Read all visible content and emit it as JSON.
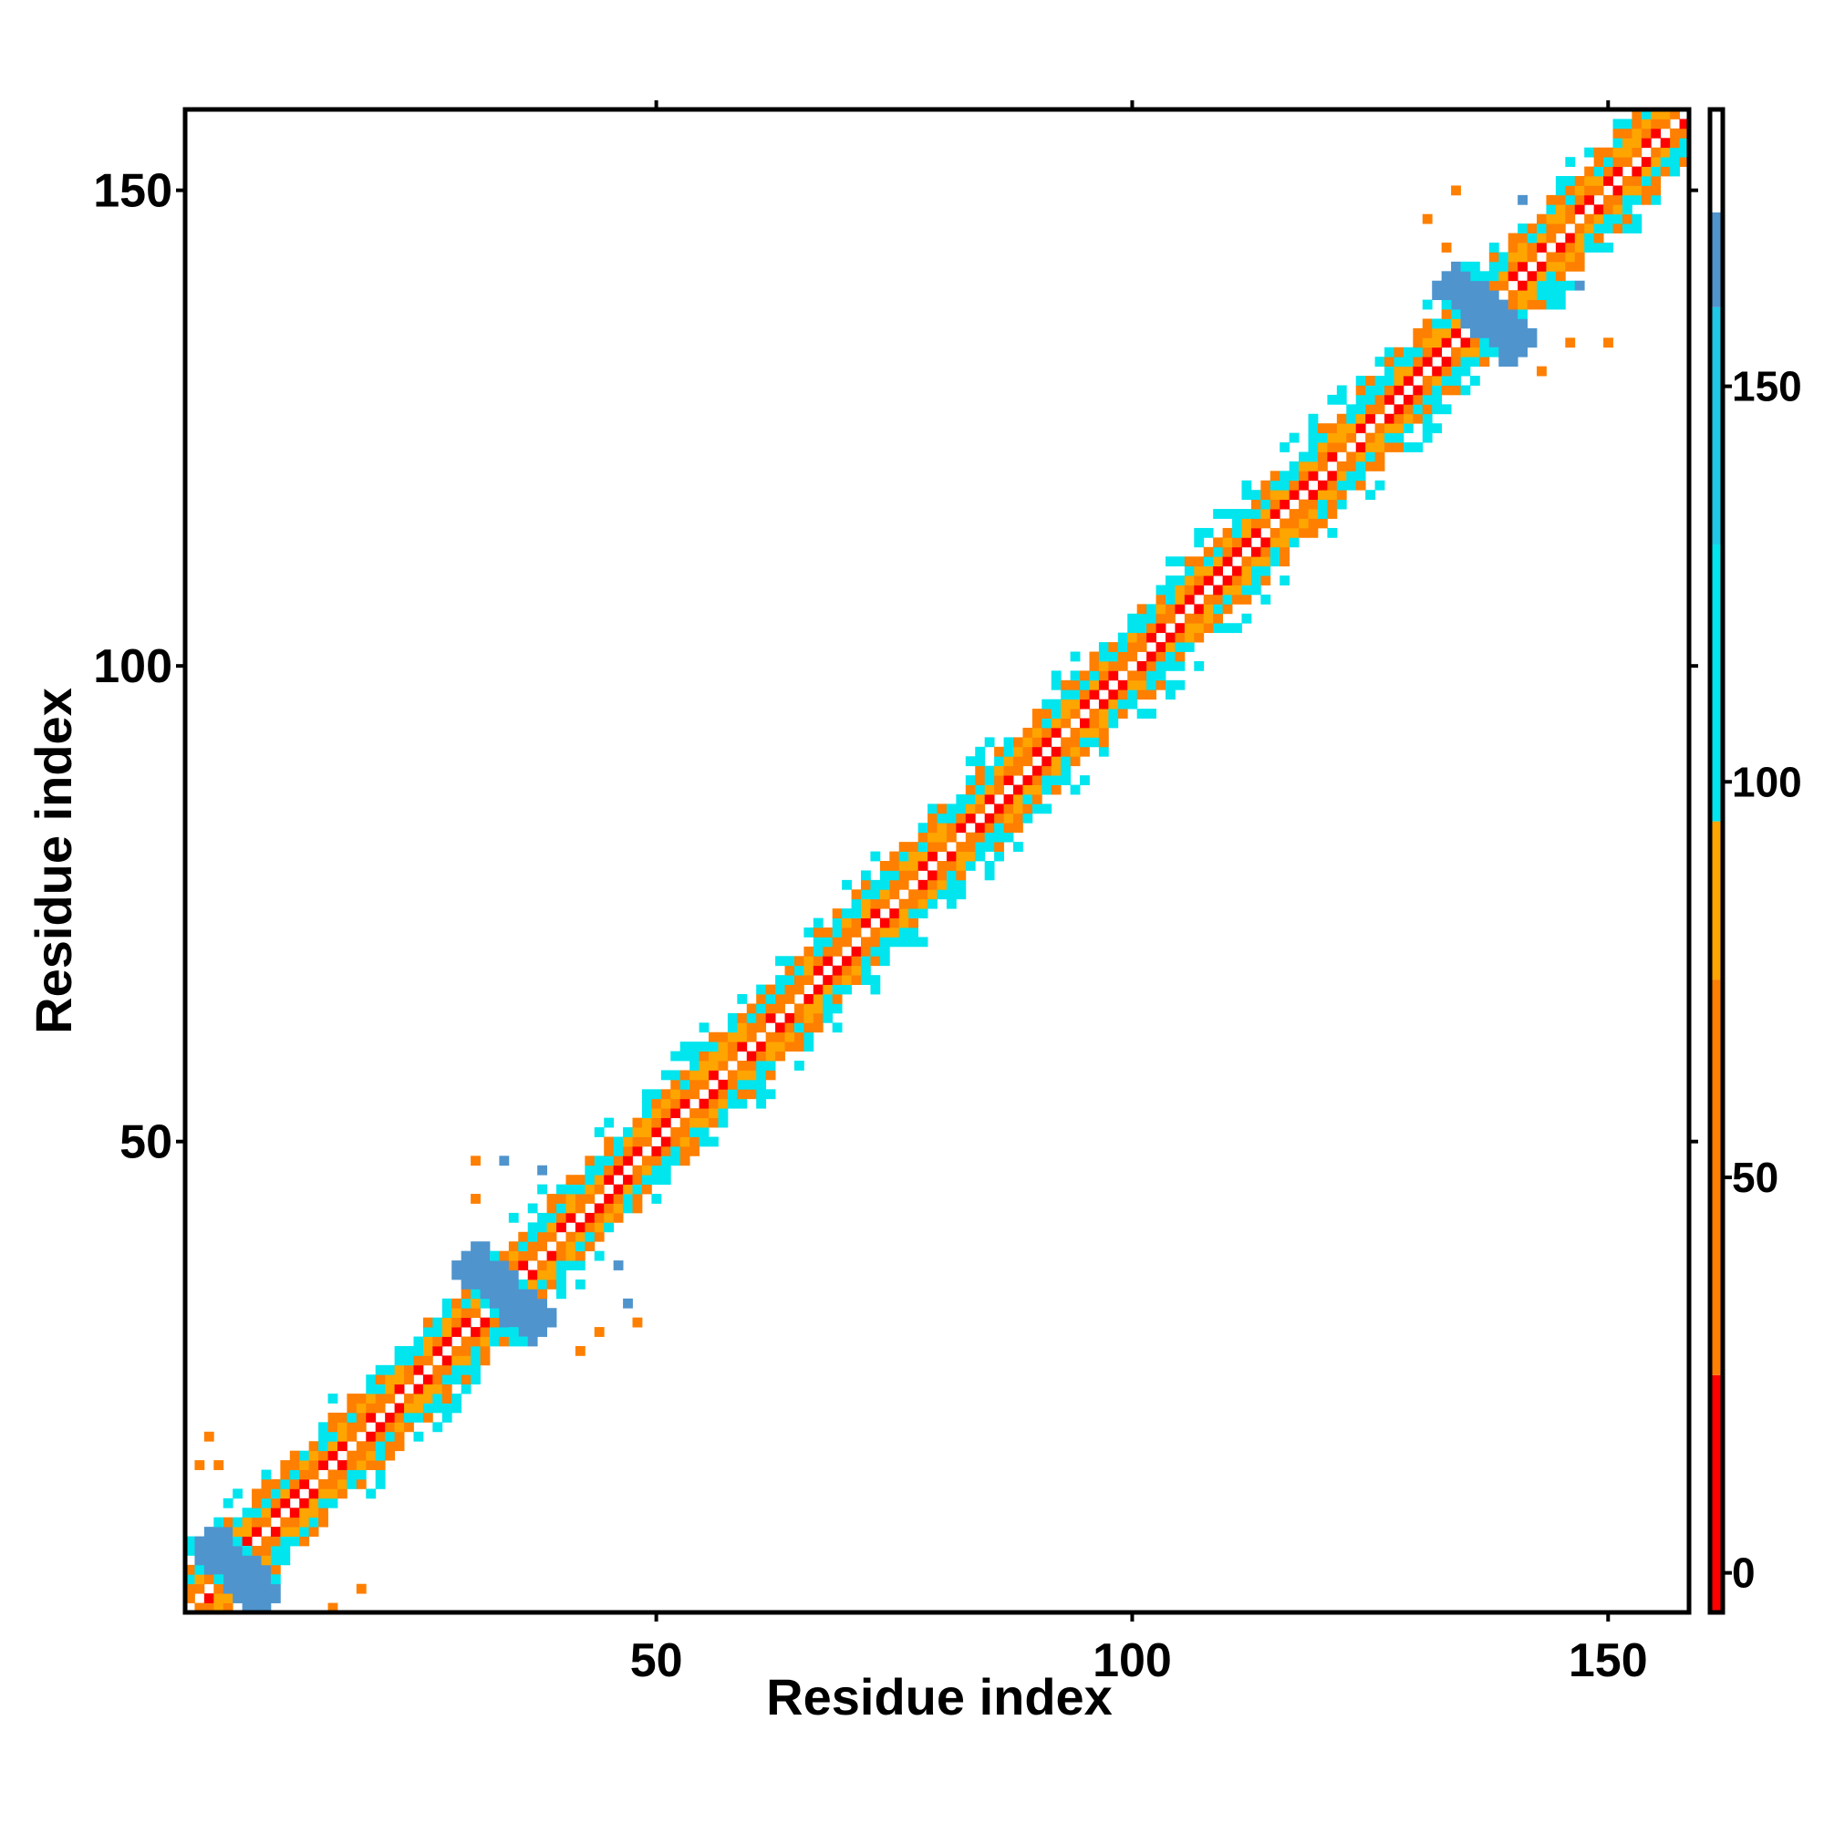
{
  "chart_data": {
    "type": "heatmap",
    "title": "",
    "xlabel": "Residue index",
    "ylabel": "Residue index",
    "xlim": [
      1,
      158
    ],
    "ylim": [
      1,
      158
    ],
    "x_ticks": [
      "50",
      "100",
      "150"
    ],
    "y_ticks": [
      "50",
      "100",
      "150"
    ],
    "colorbar": {
      "ticks": [
        "0",
        "50",
        "100",
        "150"
      ],
      "range": [
        -5,
        185
      ],
      "bands": [
        {
          "from": -5,
          "to": 25,
          "color": "#ff0000"
        },
        {
          "from": 25,
          "to": 75,
          "color": "#ff7f00"
        },
        {
          "from": 75,
          "to": 95,
          "color": "#ffa500"
        },
        {
          "from": 95,
          "to": 130,
          "color": "#00e5ee"
        },
        {
          "from": 130,
          "to": 160,
          "color": "#1ec8e6"
        },
        {
          "from": 160,
          "to": 172,
          "color": "#4f94cd"
        },
        {
          "from": 172,
          "to": 185,
          "color": "#ffffff"
        }
      ]
    },
    "legend_colors": {
      "red": "#ff0000",
      "orange": "#ff7f00",
      "light_orange": "#ffa500",
      "cyan": "#00e5ee",
      "sky": "#1ec8e6",
      "steel_blue": "#4f94cd"
    },
    "diagonal_band": {
      "from": 1,
      "to": 158,
      "half_width": 7
    },
    "dense_regions": [
      {
        "x": [
          1,
          10
        ],
        "y": [
          1,
          10
        ],
        "center": [
          6,
          5
        ],
        "spread": 4.5,
        "value": 165
      },
      {
        "x": [
          27,
          40
        ],
        "y": [
          27,
          40
        ],
        "center": [
          34,
          34
        ],
        "spread": 5,
        "value": 165
      },
      {
        "x": [
          131,
          143
        ],
        "y": [
          131,
          143
        ],
        "center": [
          137,
          137
        ],
        "spread": 5,
        "value": 165
      }
    ],
    "isolated_points": [
      {
        "x": 3,
        "y": 19,
        "value": 50
      },
      {
        "x": 2,
        "y": 16,
        "value": 50
      },
      {
        "x": 4,
        "y": 16,
        "value": 50
      },
      {
        "x": 16,
        "y": 1,
        "value": 50
      },
      {
        "x": 19,
        "y": 3,
        "value": 50
      },
      {
        "x": 31,
        "y": 48,
        "value": 50
      },
      {
        "x": 31,
        "y": 44,
        "value": 50
      },
      {
        "x": 34,
        "y": 48,
        "value": 160
      },
      {
        "x": 38,
        "y": 47,
        "value": 160
      },
      {
        "x": 46,
        "y": 37,
        "value": 160
      },
      {
        "x": 47,
        "y": 33,
        "value": 160
      },
      {
        "x": 44,
        "y": 30,
        "value": 50
      },
      {
        "x": 48,
        "y": 31,
        "value": 50
      },
      {
        "x": 42,
        "y": 28,
        "value": 50
      },
      {
        "x": 134,
        "y": 150,
        "value": 50
      },
      {
        "x": 131,
        "y": 147,
        "value": 50
      },
      {
        "x": 133,
        "y": 144,
        "value": 50
      },
      {
        "x": 141,
        "y": 149,
        "value": 160
      },
      {
        "x": 147,
        "y": 140,
        "value": 160
      },
      {
        "x": 146,
        "y": 134,
        "value": 50
      },
      {
        "x": 150,
        "y": 134,
        "value": 50
      },
      {
        "x": 143,
        "y": 131,
        "value": 50
      }
    ]
  }
}
